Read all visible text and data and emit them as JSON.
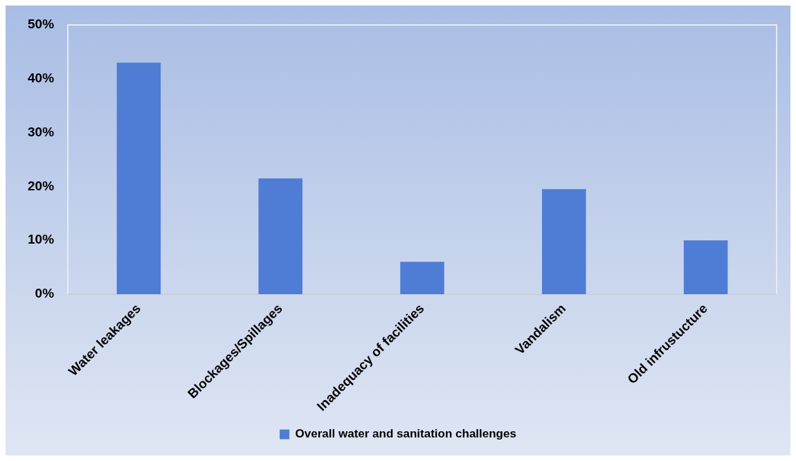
{
  "chart_data": {
    "type": "bar",
    "categories": [
      "Water leakages",
      "Blockages/Spillages",
      "Inadequacy of facilities",
      "Vandalism",
      "Old infrustucture"
    ],
    "series": [
      {
        "name": "Overall water and sanitation challenges",
        "color": "#4f7dd5",
        "values": [
          43,
          21.5,
          6,
          19.5,
          10
        ]
      }
    ],
    "ylim": [
      0,
      50
    ],
    "yticks": [
      {
        "value": 0,
        "label": "0%"
      },
      {
        "value": 10,
        "label": "10%"
      },
      {
        "value": 20,
        "label": "20%"
      },
      {
        "value": 30,
        "label": "30%"
      },
      {
        "value": 40,
        "label": "40%"
      },
      {
        "value": 50,
        "label": "50%"
      }
    ],
    "grid": false,
    "legend": "bottom"
  }
}
